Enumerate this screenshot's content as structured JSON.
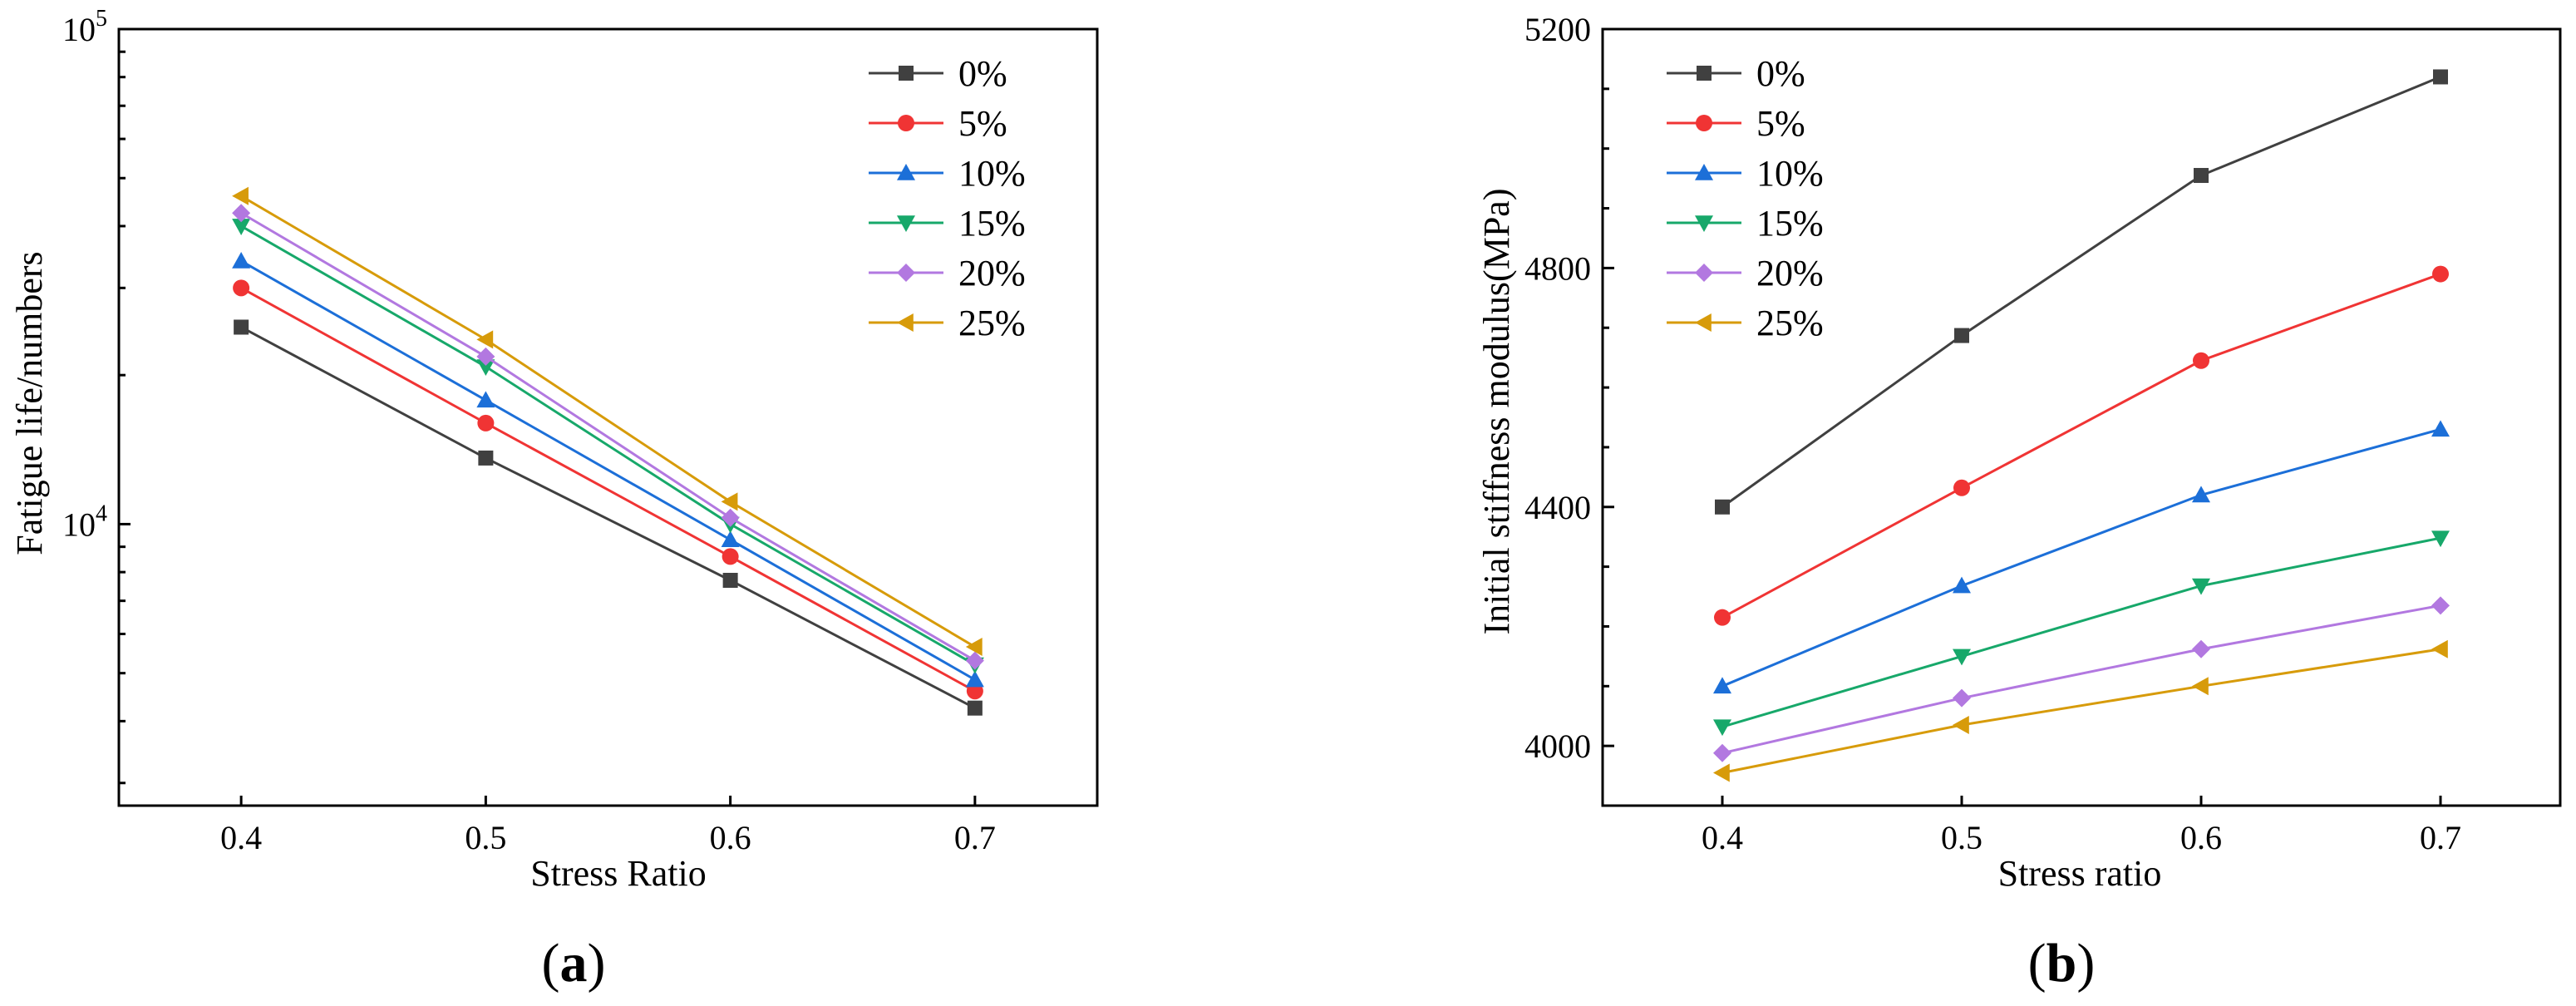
{
  "chart_data": [
    {
      "id": "a",
      "type": "line",
      "caption": {
        "open": "(",
        "letter": "a",
        "close": ")"
      },
      "xlabel": "Stress Ratio",
      "ylabel": "Fatigue life/numbers",
      "yscale": "log",
      "xlim": [
        0.35,
        0.75
      ],
      "ylim": [
        2700,
        100000
      ],
      "x": [
        0.4,
        0.5,
        0.6,
        0.7
      ],
      "xticks": [
        "0.4",
        "0.5",
        "0.6",
        "0.7"
      ],
      "yticks": [
        {
          "value": 10000,
          "base": "10",
          "exp": "4"
        },
        {
          "value": 100000,
          "base": "10",
          "exp": "5"
        }
      ],
      "legend_position": "top-right",
      "series": [
        {
          "name": "0%",
          "marker": "square",
          "color": "#404040",
          "values": [
            25000,
            13600,
            7700,
            4250
          ]
        },
        {
          "name": "5%",
          "marker": "circle",
          "color": "#f03434",
          "values": [
            30000,
            16000,
            8600,
            4600
          ]
        },
        {
          "name": "10%",
          "marker": "triangle-up",
          "color": "#1c6fd8",
          "values": [
            34000,
            17800,
            9300,
            4850
          ]
        },
        {
          "name": "15%",
          "marker": "triangle-down",
          "color": "#17a86a",
          "values": [
            40000,
            20800,
            10000,
            5200
          ]
        },
        {
          "name": "20%",
          "marker": "diamond",
          "color": "#b278e0",
          "values": [
            42500,
            21800,
            10300,
            5300
          ]
        },
        {
          "name": "25%",
          "marker": "triangle-left",
          "color": "#d79b0a",
          "values": [
            46000,
            23600,
            11100,
            5650
          ]
        }
      ]
    },
    {
      "id": "b",
      "type": "line",
      "caption": {
        "open": "(",
        "letter": "b",
        "close": ")"
      },
      "xlabel": "Stress ratio",
      "ylabel": "Initial stiffness modulus(MPa)",
      "yscale": "linear",
      "xlim": [
        0.35,
        0.75
      ],
      "ylim": [
        3900,
        5200
      ],
      "x": [
        0.4,
        0.5,
        0.6,
        0.7
      ],
      "xticks": [
        "0.4",
        "0.5",
        "0.6",
        "0.7"
      ],
      "yticks": [
        {
          "value": 4000,
          "label": "4000"
        },
        {
          "value": 4400,
          "label": "4400"
        },
        {
          "value": 4800,
          "label": "4800"
        },
        {
          "value": 5200,
          "label": "5200"
        }
      ],
      "legend_position": "top-left",
      "series": [
        {
          "name": "0%",
          "marker": "square",
          "color": "#404040",
          "values": [
            4400,
            4687,
            4955,
            5120
          ]
        },
        {
          "name": "5%",
          "marker": "circle",
          "color": "#f03434",
          "values": [
            4215,
            4432,
            4645,
            4790
          ]
        },
        {
          "name": "10%",
          "marker": "triangle-up",
          "color": "#1c6fd8",
          "values": [
            4100,
            4268,
            4420,
            4530
          ]
        },
        {
          "name": "15%",
          "marker": "triangle-down",
          "color": "#17a86a",
          "values": [
            4032,
            4150,
            4268,
            4348
          ]
        },
        {
          "name": "20%",
          "marker": "diamond",
          "color": "#b278e0",
          "values": [
            3988,
            4080,
            4162,
            4235
          ]
        },
        {
          "name": "25%",
          "marker": "triangle-left",
          "color": "#d79b0a",
          "values": [
            3955,
            4035,
            4100,
            4162
          ]
        }
      ]
    }
  ]
}
